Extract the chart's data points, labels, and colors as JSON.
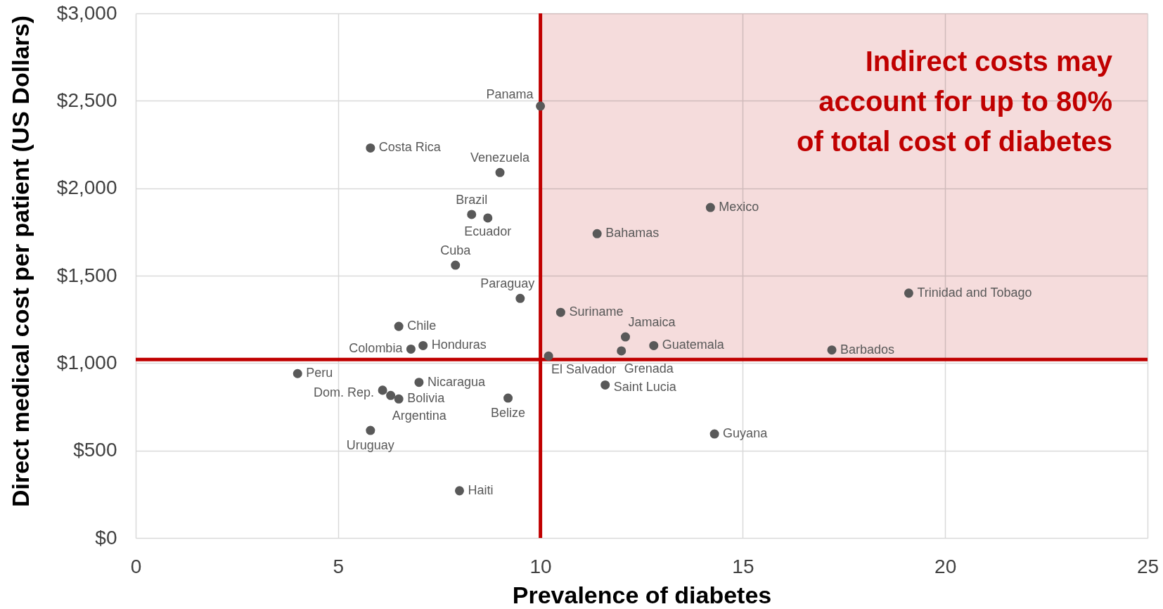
{
  "chart_data": {
    "type": "scatter",
    "xlabel": "Prevalence of diabetes",
    "ylabel": "Direct medical cost per patient (US Dollars)",
    "x": [
      4.0,
      5.8,
      5.8,
      6.1,
      6.3,
      6.5,
      6.5,
      6.8,
      7.0,
      7.1,
      7.9,
      8.0,
      8.3,
      8.7,
      9.0,
      9.2,
      9.5,
      10.0,
      10.2,
      10.5,
      11.4,
      11.6,
      12.0,
      12.1,
      12.8,
      14.2,
      14.3,
      17.2,
      19.1
    ],
    "values": [
      940,
      2230,
      615,
      845,
      815,
      1210,
      795,
      1080,
      890,
      1100,
      1560,
      270,
      1850,
      1830,
      2090,
      800,
      1370,
      2470,
      1040,
      1290,
      1740,
      875,
      1070,
      1150,
      1100,
      1890,
      595,
      1075,
      1400
    ],
    "color": "#595959",
    "marker": "circle",
    "xlim": [
      0,
      25
    ],
    "ylim": [
      0,
      3000
    ],
    "xticks": [
      0,
      5,
      10,
      15,
      20,
      25
    ],
    "yticks": [
      {
        "value": 0,
        "label": "$0"
      },
      {
        "value": 500,
        "label": "$500"
      },
      {
        "value": 1000,
        "label": "$1,000"
      },
      {
        "value": 1500,
        "label": "$1,500"
      },
      {
        "value": 2000,
        "label": "$2,000"
      },
      {
        "value": 2500,
        "label": "$2,500"
      },
      {
        "value": 3000,
        "label": "$3,000"
      }
    ],
    "grid": true,
    "ref_lines": [
      {
        "axis": "x",
        "value": 10,
        "color": "#c00000"
      },
      {
        "axis": "y",
        "value": 1020,
        "color": "#c00000"
      }
    ],
    "bands": [
      {
        "axis": "x",
        "from": 10,
        "to": 25,
        "color": "#f5dcdc",
        "label": "Indirect costs may\naccount for up to 80%\nof total cost of diabetes"
      }
    ],
    "annotations": [
      {
        "text": "Peru",
        "x": 4.0,
        "y": 940
      },
      {
        "text": "Costa Rica",
        "x": 5.8,
        "y": 2230
      },
      {
        "text": "Uruguay",
        "x": 5.8,
        "y": 615
      },
      {
        "text": "Dom. Rep.",
        "x": 6.1,
        "y": 845
      },
      {
        "text": "Argentina",
        "x": 6.3,
        "y": 815
      },
      {
        "text": "Chile",
        "x": 6.5,
        "y": 1210
      },
      {
        "text": "Bolivia",
        "x": 6.5,
        "y": 795
      },
      {
        "text": "Colombia",
        "x": 6.8,
        "y": 1080
      },
      {
        "text": "Nicaragua",
        "x": 7.0,
        "y": 890
      },
      {
        "text": "Honduras",
        "x": 7.1,
        "y": 1100
      },
      {
        "text": "Cuba",
        "x": 7.9,
        "y": 1560
      },
      {
        "text": "Haiti",
        "x": 8.0,
        "y": 270
      },
      {
        "text": "Brazil",
        "x": 8.3,
        "y": 1850
      },
      {
        "text": "Ecuador",
        "x": 8.7,
        "y": 1830
      },
      {
        "text": "Venezuela",
        "x": 9.0,
        "y": 2090
      },
      {
        "text": "Belize",
        "x": 9.2,
        "y": 800
      },
      {
        "text": "Paraguay",
        "x": 9.5,
        "y": 1370
      },
      {
        "text": "Panama",
        "x": 10.0,
        "y": 2470
      },
      {
        "text": "El Salvador",
        "x": 10.2,
        "y": 1040
      },
      {
        "text": "Suriname",
        "x": 10.5,
        "y": 1290
      },
      {
        "text": "Bahamas",
        "x": 11.4,
        "y": 1740
      },
      {
        "text": "Saint Lucia",
        "x": 11.6,
        "y": 875
      },
      {
        "text": "Grenada",
        "x": 12.0,
        "y": 1070
      },
      {
        "text": "Jamaica",
        "x": 12.1,
        "y": 1150
      },
      {
        "text": "Guatemala",
        "x": 12.8,
        "y": 1100
      },
      {
        "text": "Mexico",
        "x": 14.2,
        "y": 1890
      },
      {
        "text": "Guyana",
        "x": 14.3,
        "y": 595
      },
      {
        "text": "Barbados",
        "x": 17.2,
        "y": 1075
      },
      {
        "text": "Trinidad and Tobago",
        "x": 19.1,
        "y": 1400
      }
    ]
  }
}
